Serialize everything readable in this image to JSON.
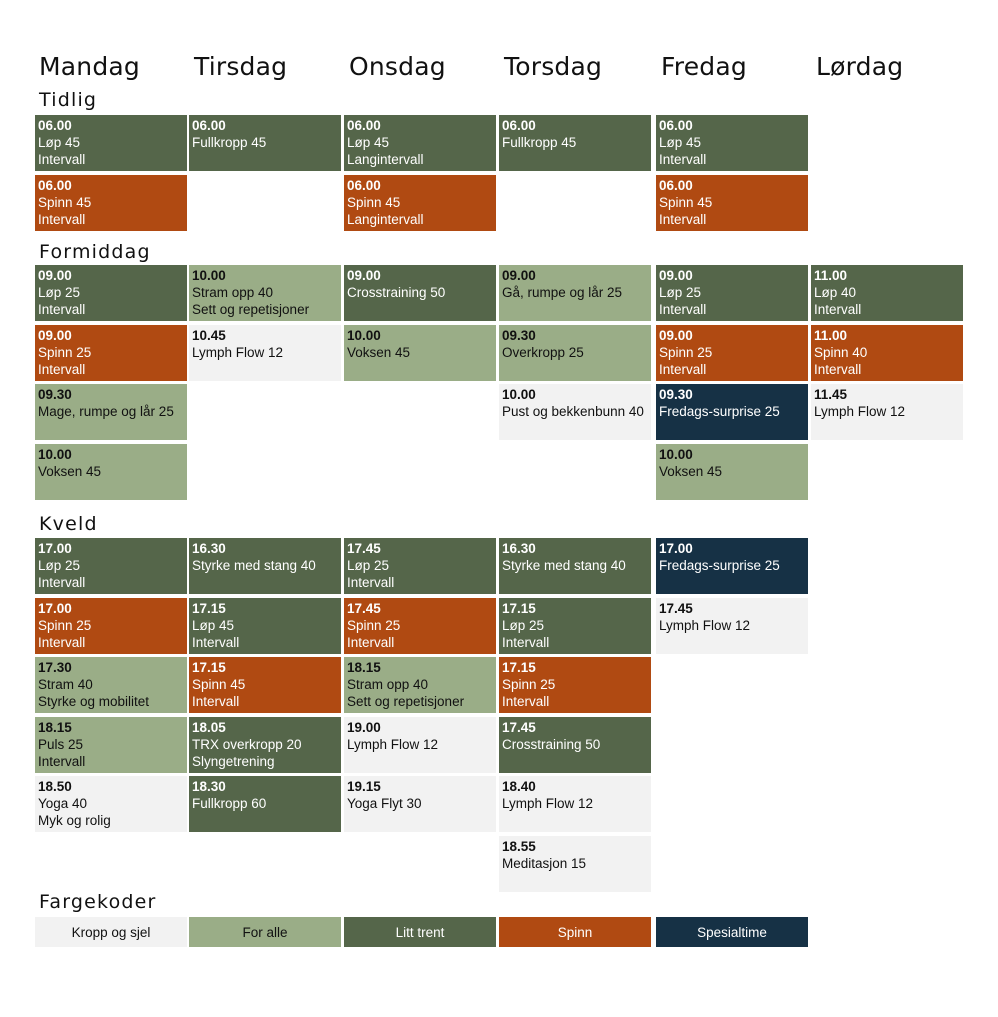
{
  "days": [
    "Mandag",
    "Tirsdag",
    "Onsdag",
    "Torsdag",
    "Fredag",
    "Lørdag"
  ],
  "colors": {
    "kropp": "#f2f2f2",
    "alle": "#9aad87",
    "litt": "#55664a",
    "spinn": "#b04a12",
    "spesial": "#163145"
  },
  "sections": [
    {
      "title": "Tidlig",
      "columns": [
        [
          {
            "time": "06.00",
            "name": "Løp 45",
            "sub": "Intervall",
            "kind": "litt"
          },
          {
            "time": "06.00",
            "name": "Spinn 45",
            "sub": "Intervall",
            "kind": "spinn"
          }
        ],
        [
          {
            "time": "06.00",
            "name": "Fullkropp 45",
            "sub": "",
            "kind": "litt"
          }
        ],
        [
          {
            "time": "06.00",
            "name": "Løp 45",
            "sub": "Langintervall",
            "kind": "litt"
          },
          {
            "time": "06.00",
            "name": "Spinn 45",
            "sub": "Langintervall",
            "kind": "spinn"
          }
        ],
        [
          {
            "time": "06.00",
            "name": "Fullkropp 45",
            "sub": "",
            "kind": "litt"
          }
        ],
        [
          {
            "time": "06.00",
            "name": "Løp 45",
            "sub": "Intervall",
            "kind": "litt"
          },
          {
            "time": "06.00",
            "name": "Spinn 45",
            "sub": "Intervall",
            "kind": "spinn"
          }
        ],
        []
      ]
    },
    {
      "title": "Formiddag",
      "columns": [
        [
          {
            "time": "09.00",
            "name": "Løp 25",
            "sub": "Intervall",
            "kind": "litt"
          },
          {
            "time": "09.00",
            "name": "Spinn 25",
            "sub": "Intervall",
            "kind": "spinn"
          },
          {
            "time": "09.30",
            "name": "Mage, rumpe og lår 25",
            "sub": "",
            "kind": "alle"
          },
          {
            "time": "10.00",
            "name": "Voksen 45",
            "sub": "",
            "kind": "alle"
          }
        ],
        [
          {
            "time": "10.00",
            "name": "Stram opp 40",
            "sub": "Sett og repetisjoner",
            "kind": "alle"
          },
          {
            "time": "10.45",
            "name": "Lymph Flow 12",
            "sub": "",
            "kind": "kropp"
          }
        ],
        [
          {
            "time": "09.00",
            "name": "Crosstraining 50",
            "sub": "",
            "kind": "litt"
          },
          {
            "time": "10.00",
            "name": "Voksen 45",
            "sub": "",
            "kind": "alle"
          }
        ],
        [
          {
            "time": "09.00",
            "name": "Gå, rumpe og lår 25",
            "sub": "",
            "kind": "alle"
          },
          {
            "time": "09.30",
            "name": "Overkropp  25",
            "sub": "",
            "kind": "alle"
          },
          {
            "time": "10.00",
            "name": "Pust og bekkenbunn 40",
            "sub": "",
            "kind": "kropp"
          }
        ],
        [
          {
            "time": "09.00",
            "name": "Løp 25",
            "sub": "Intervall",
            "kind": "litt"
          },
          {
            "time": "09.00",
            "name": "Spinn 25",
            "sub": "Intervall",
            "kind": "spinn"
          },
          {
            "time": "09.30",
            "name": "Fredags-surprise 25",
            "sub": "",
            "kind": "spesial"
          },
          {
            "time": "10.00",
            "name": "Voksen 45",
            "sub": "",
            "kind": "alle"
          }
        ],
        [
          {
            "time": "11.00",
            "name": "Løp 40",
            "sub": "Intervall",
            "kind": "litt"
          },
          {
            "time": "11.00",
            "name": "Spinn 40",
            "sub": "Intervall",
            "kind": "spinn"
          },
          {
            "time": "11.45",
            "name": "Lymph Flow 12",
            "sub": "",
            "kind": "kropp"
          }
        ]
      ]
    },
    {
      "title": "Kveld",
      "columns": [
        [
          {
            "time": "17.00",
            "name": "Løp 25",
            "sub": "Intervall",
            "kind": "litt"
          },
          {
            "time": "17.00",
            "name": "Spinn 25",
            "sub": "Intervall",
            "kind": "spinn"
          },
          {
            "time": "17.30",
            "name": "Stram 40",
            "sub": "Styrke og mobilitet",
            "kind": "alle"
          },
          {
            "time": "18.15",
            "name": "Puls 25",
            "sub": "Intervall",
            "kind": "alle"
          },
          {
            "time": "18.50",
            "name": "Yoga 40",
            "sub": "Myk og rolig",
            "kind": "kropp"
          }
        ],
        [
          {
            "time": "16.30",
            "name": "Styrke med stang 40",
            "sub": "",
            "kind": "litt"
          },
          {
            "time": "17.15",
            "name": "Løp 45",
            "sub": "Intervall",
            "kind": "litt"
          },
          {
            "time": "17.15",
            "name": "Spinn 45",
            "sub": "Intervall",
            "kind": "spinn"
          },
          {
            "time": "18.05",
            "name": "TRX overkropp 20",
            "sub": "Slyngetrening",
            "kind": "litt"
          },
          {
            "time": "18.30",
            "name": "Fullkropp 60",
            "sub": "",
            "kind": "litt"
          }
        ],
        [
          {
            "time": "17.45",
            "name": "Løp 25",
            "sub": "Intervall",
            "kind": "litt"
          },
          {
            "time": "17.45",
            "name": "Spinn 25",
            "sub": "Intervall",
            "kind": "spinn"
          },
          {
            "time": "18.15",
            "name": "Stram opp 40",
            "sub": "Sett og repetisjoner",
            "kind": "alle"
          },
          {
            "time": "19.00",
            "name": "Lymph Flow 12",
            "sub": "",
            "kind": "kropp"
          },
          {
            "time": "19.15",
            "name": "Yoga Flyt 30",
            "sub": "",
            "kind": "kropp"
          }
        ],
        [
          {
            "time": "16.30",
            "name": "Styrke med stang 40",
            "sub": "",
            "kind": "litt"
          },
          {
            "time": "17.15",
            "name": "Løp 25",
            "sub": "Intervall",
            "kind": "litt"
          },
          {
            "time": "17.15",
            "name": "Spinn 25",
            "sub": "Intervall",
            "kind": "spinn"
          },
          {
            "time": "17.45",
            "name": "Crosstraining 50",
            "sub": "",
            "kind": "litt"
          },
          {
            "time": "18.40",
            "name": "Lymph Flow 12",
            "sub": "",
            "kind": "kropp"
          },
          {
            "time": "18.55",
            "name": "Meditasjon 15",
            "sub": "",
            "kind": "kropp"
          }
        ],
        [
          {
            "time": "17.00",
            "name": "Fredags-surprise 25",
            "sub": "",
            "kind": "spesial"
          },
          {
            "time": "17.45",
            "name": "Lymph Flow 12",
            "sub": "",
            "kind": "kropp"
          }
        ],
        []
      ]
    }
  ],
  "legend": {
    "title": "Fargekoder",
    "items": [
      {
        "label": "Kropp og sjel",
        "kind": "kropp"
      },
      {
        "label": "For alle",
        "kind": "alle"
      },
      {
        "label": "Litt trent",
        "kind": "litt"
      },
      {
        "label": "Spinn",
        "kind": "spinn"
      },
      {
        "label": "Spesialtime",
        "kind": "spesial"
      }
    ]
  }
}
